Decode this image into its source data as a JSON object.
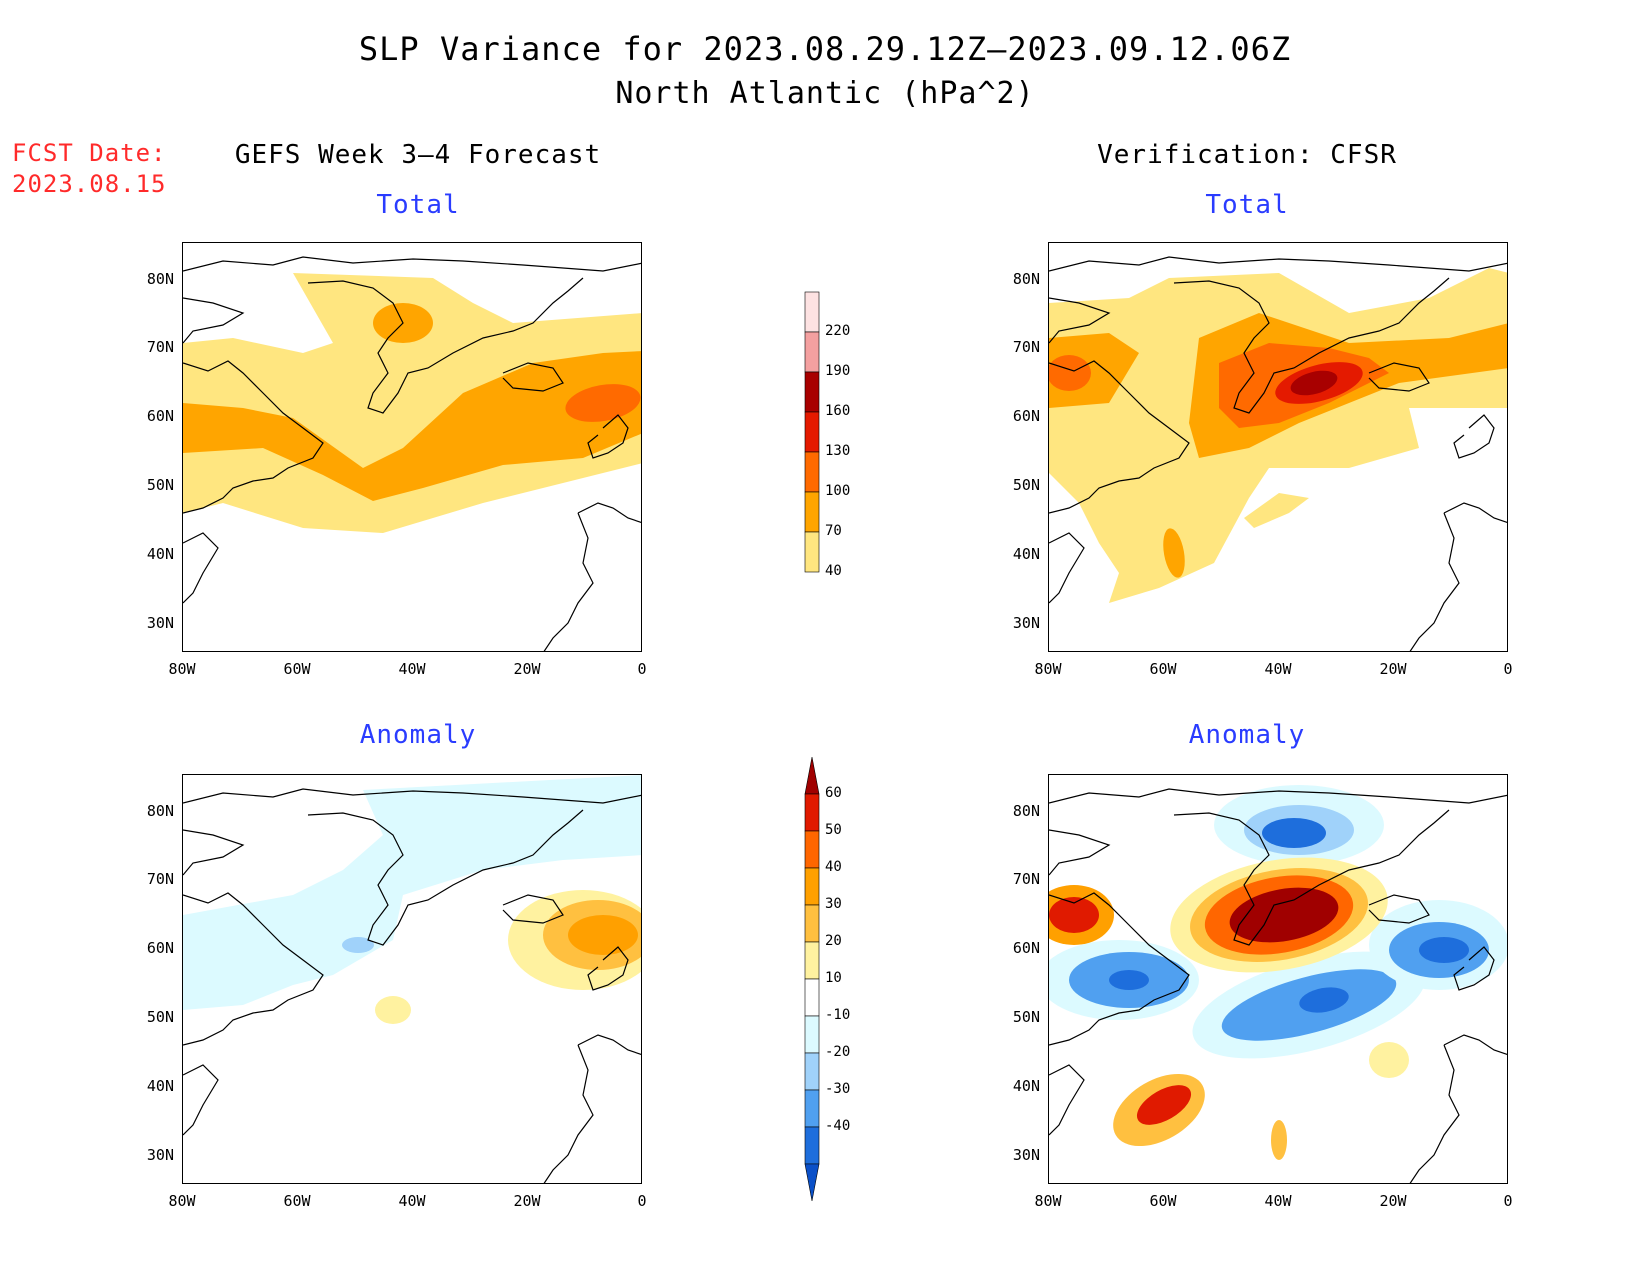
{
  "title": {
    "line1": "SLP Variance for 2023.08.29.12Z–2023.09.12.06Z",
    "line2": "North Atlantic (hPa^2)"
  },
  "fcst_date": {
    "label": "FCST Date:",
    "value": "2023.08.15"
  },
  "columns": {
    "left": "GEFS Week 3–4 Forecast",
    "right": "Verification: CFSR"
  },
  "rows": {
    "top": "Total",
    "bottom": "Anomaly"
  },
  "axes": {
    "lat_ticks": [
      "80N",
      "70N",
      "60N",
      "50N",
      "40N",
      "30N"
    ],
    "lon_ticks": [
      "80W",
      "60W",
      "40W",
      "20W",
      "0"
    ]
  },
  "colorbars": {
    "total": {
      "labels": [
        "220",
        "190",
        "160",
        "130",
        "100",
        "70",
        "40"
      ],
      "colors": [
        "#fde2e2",
        "#f4a0a0",
        "#a80000",
        "#e41a00",
        "#ff6a00",
        "#ffa500",
        "#ffe680"
      ]
    },
    "anomaly": {
      "labels": [
        "60",
        "50",
        "40",
        "30",
        "20",
        "10",
        "-10",
        "-20",
        "-30",
        "-40"
      ],
      "colors": [
        "#a00000",
        "#e01a00",
        "#ff6600",
        "#ffa000",
        "#ffc040",
        "#fff2a0",
        "#ffffff",
        "#dcfaff",
        "#a0d2fa",
        "#50a0f0",
        "#1e6edc",
        "#0a50c8"
      ]
    }
  },
  "chart_data": [
    {
      "type": "heatmap",
      "title": "Total",
      "panel": "GEFS Week 3–4 Forecast",
      "units": "hPa^2",
      "lon_range": [
        -80,
        0
      ],
      "lat_range": [
        25,
        85
      ],
      "levels": [
        40,
        70,
        100,
        130,
        160,
        190,
        220
      ],
      "features": [
        {
          "desc": "storm track band across North Atlantic",
          "value_range": [
            40,
            100
          ]
        },
        {
          "desc": "local maximum near Iceland / 10W 62N",
          "value_range": [
            100,
            130
          ]
        },
        {
          "desc": "small max over central Greenland",
          "value_range": [
            70,
            100
          ]
        }
      ]
    },
    {
      "type": "heatmap",
      "title": "Total",
      "panel": "Verification: CFSR",
      "units": "hPa^2",
      "lon_range": [
        -80,
        0
      ],
      "lat_range": [
        25,
        85
      ],
      "levels": [
        40,
        70,
        100,
        130,
        160,
        190,
        220
      ],
      "features": [
        {
          "desc": "max southeast of Greenland near 33W 63N",
          "value_range": [
            130,
            160
          ]
        },
        {
          "desc": "max over Hudson Bay region",
          "value_range": [
            100,
            130
          ]
        }
      ]
    },
    {
      "type": "heatmap",
      "title": "Anomaly",
      "panel": "GEFS Week 3–4 Forecast",
      "units": "hPa^2",
      "lon_range": [
        -80,
        0
      ],
      "lat_range": [
        25,
        85
      ],
      "levels": [
        -40,
        -30,
        -20,
        -10,
        10,
        20,
        30,
        40,
        50,
        60
      ],
      "features": [
        {
          "desc": "positive anomaly near Iceland / UK",
          "value_range": [
            20,
            30
          ]
        },
        {
          "desc": "weak negative anomaly Labrador Sea / Greenland",
          "value_range": [
            -20,
            -10
          ]
        }
      ]
    },
    {
      "type": "heatmap",
      "title": "Anomaly",
      "panel": "Verification: CFSR",
      "units": "hPa^2",
      "lon_range": [
        -80,
        0
      ],
      "lat_range": [
        25,
        85
      ],
      "levels": [
        -40,
        -30,
        -20,
        -10,
        10,
        20,
        30,
        40,
        50,
        60
      ],
      "features": [
        {
          "desc": "strong positive anomaly southeast Greenland",
          "value_range": [
            50,
            60
          ]
        },
        {
          "desc": "positive anomaly Hudson Bay",
          "value_range": [
            40,
            50
          ]
        },
        {
          "desc": "positive anomaly off US east coast near 58W 38N",
          "value_range": [
            40,
            50
          ]
        },
        {
          "desc": "negative anomalies Labrador, mid-Atlantic, near UK, north Greenland",
          "value_range": [
            -40,
            -20
          ]
        }
      ]
    }
  ]
}
